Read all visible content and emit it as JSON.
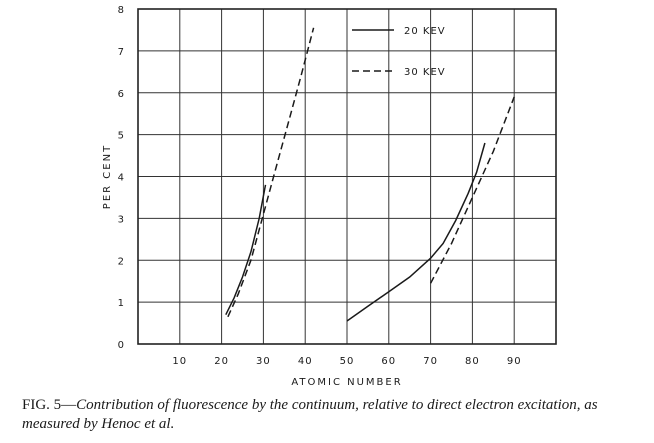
{
  "chart_data": {
    "type": "line",
    "xlabel": "ATOMIC NUMBER",
    "ylabel": "PER CENT",
    "xlim": [
      0,
      100
    ],
    "ylim": [
      0,
      8
    ],
    "xticks": [
      10,
      20,
      30,
      40,
      50,
      60,
      70,
      80,
      90
    ],
    "yticks": [
      0,
      1,
      2,
      3,
      4,
      5,
      6,
      7,
      8
    ],
    "grid": true,
    "legend_position": "top-right",
    "series": [
      {
        "name": "20 KEV",
        "style": "solid",
        "segments": [
          [
            [
              21,
              0.7
            ],
            [
              23,
              1.1
            ],
            [
              25,
              1.6
            ],
            [
              27,
              2.2
            ],
            [
              29,
              3.0
            ],
            [
              30.5,
              3.8
            ]
          ],
          [
            [
              50,
              0.55
            ],
            [
              55,
              0.9
            ],
            [
              60,
              1.25
            ],
            [
              65,
              1.6
            ],
            [
              70,
              2.05
            ],
            [
              73,
              2.4
            ],
            [
              76,
              2.95
            ],
            [
              79,
              3.6
            ],
            [
              81,
              4.1
            ],
            [
              83,
              4.8
            ]
          ]
        ]
      },
      {
        "name": "30 KEV",
        "style": "dashed",
        "segments": [
          [
            [
              21.5,
              0.65
            ],
            [
              24,
              1.2
            ],
            [
              27,
              2.0
            ],
            [
              30,
              3.1
            ],
            [
              33,
              4.2
            ],
            [
              36,
              5.3
            ],
            [
              39,
              6.4
            ],
            [
              42,
              7.55
            ]
          ],
          [
            [
              70,
              1.45
            ],
            [
              75,
              2.4
            ],
            [
              80,
              3.5
            ],
            [
              85,
              4.6
            ],
            [
              90,
              5.9
            ]
          ]
        ]
      }
    ]
  },
  "caption": {
    "fig_label": "FIG. 5—",
    "text": "Contribution of fluorescence by the continuum, relative to direct electron excitation, as measured by Henoc et al."
  }
}
